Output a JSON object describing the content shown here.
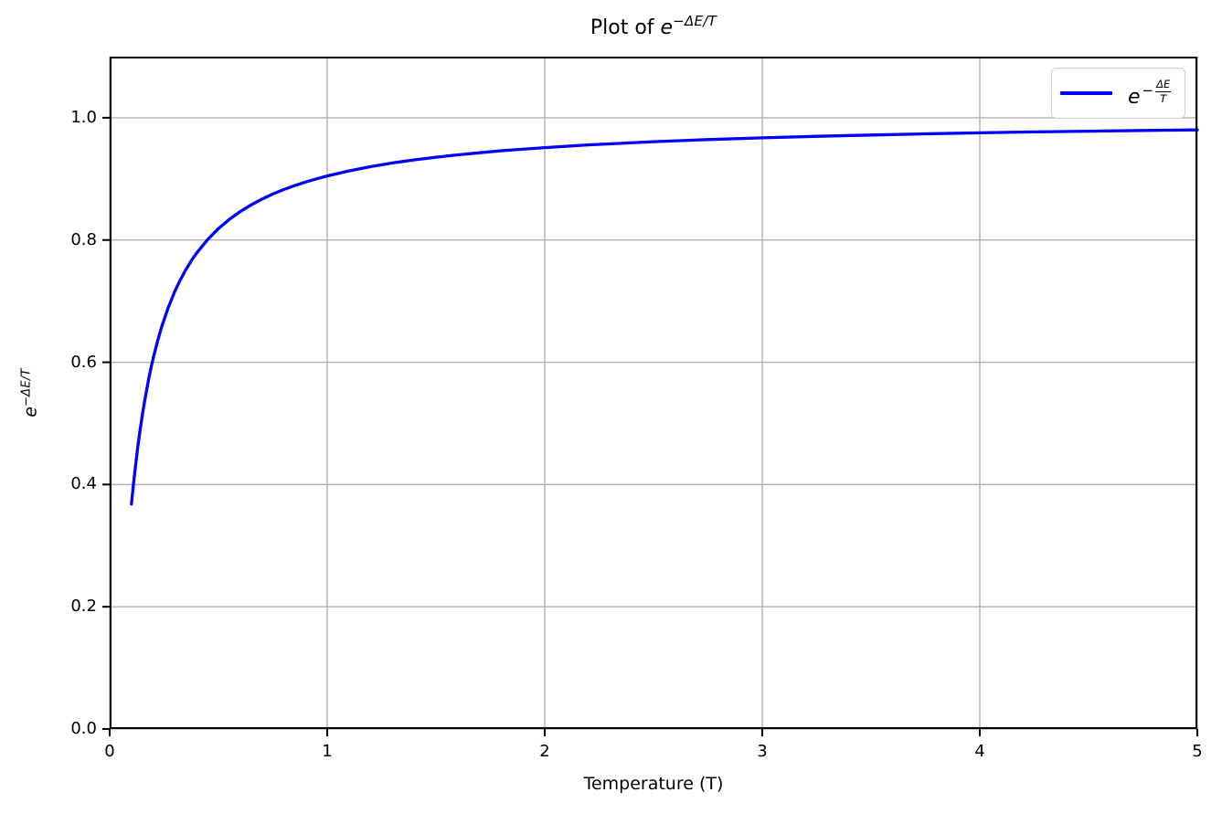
{
  "title": {
    "prefix": "Plot of ",
    "math_base": "e",
    "math_exponent": "−ΔE/T"
  },
  "axes": {
    "x_label": "Temperature (T)",
    "y_label": {
      "math_base": "e",
      "math_exponent": "−ΔE/T"
    }
  },
  "legend": {
    "position": "upper right",
    "swatch_color": "#0000ff",
    "label": {
      "base": "e",
      "sign": "−",
      "frac_numerator": "ΔE",
      "frac_denominator": "T"
    }
  },
  "chart_data": {
    "type": "line",
    "title": "Plot of e^(−ΔE/T)",
    "xlabel": "Temperature (T)",
    "ylabel": "e^(−ΔE/T)",
    "xlim": [
      0,
      5
    ],
    "ylim": [
      0,
      1.1
    ],
    "x_ticks": [
      0,
      1,
      2,
      3,
      4,
      5
    ],
    "x_tick_labels": [
      "0",
      "1",
      "2",
      "3",
      "4",
      "5"
    ],
    "y_ticks": [
      0.0,
      0.2,
      0.4,
      0.6,
      0.8,
      1.0
    ],
    "y_tick_labels": [
      "0.0",
      "0.2",
      "0.4",
      "0.6",
      "0.8",
      "1.0"
    ],
    "grid": true,
    "grid_color": "#b0b0b0",
    "background_color": "#ffffff",
    "spine_color": "#000000",
    "legend_position": "upper right",
    "function": "y = exp(-ΔE/T) with ΔE = 0.1, T from 0.1 to 5",
    "series": [
      {
        "name": "e^(−ΔE/T)",
        "color": "#0000ff",
        "line_width": 3.3,
        "x": [
          0.1,
          0.105,
          0.11,
          0.115,
          0.12,
          0.13,
          0.14,
          0.15,
          0.16,
          0.17,
          0.18,
          0.19,
          0.2,
          0.22,
          0.24,
          0.27,
          0.3,
          0.32,
          0.35,
          0.38,
          0.4,
          0.45,
          0.5,
          0.55,
          0.6,
          0.65,
          0.7,
          0.75,
          0.8,
          0.85,
          0.9,
          0.95,
          1.0,
          1.1,
          1.2,
          1.3,
          1.4,
          1.5,
          1.6,
          1.8,
          2.0,
          2.2,
          2.5,
          2.75,
          3.0,
          3.25,
          3.5,
          3.75,
          4.0,
          4.25,
          4.5,
          4.75,
          5.0
        ],
        "y": [
          0.3679,
          0.3858,
          0.4029,
          0.4191,
          0.4346,
          0.4634,
          0.4895,
          0.5134,
          0.5353,
          0.5553,
          0.5738,
          0.5908,
          0.6065,
          0.6347,
          0.6592,
          0.6904,
          0.7165,
          0.7316,
          0.7515,
          0.7686,
          0.7788,
          0.8007,
          0.8187,
          0.8338,
          0.8465,
          0.8574,
          0.8669,
          0.8752,
          0.8825,
          0.889,
          0.8948,
          0.9001,
          0.9048,
          0.9131,
          0.92,
          0.926,
          0.9311,
          0.9355,
          0.9394,
          0.946,
          0.9512,
          0.9556,
          0.9608,
          0.9643,
          0.9672,
          0.9697,
          0.9718,
          0.9737,
          0.9753,
          0.9768,
          0.978,
          0.9792,
          0.9802
        ]
      }
    ]
  }
}
